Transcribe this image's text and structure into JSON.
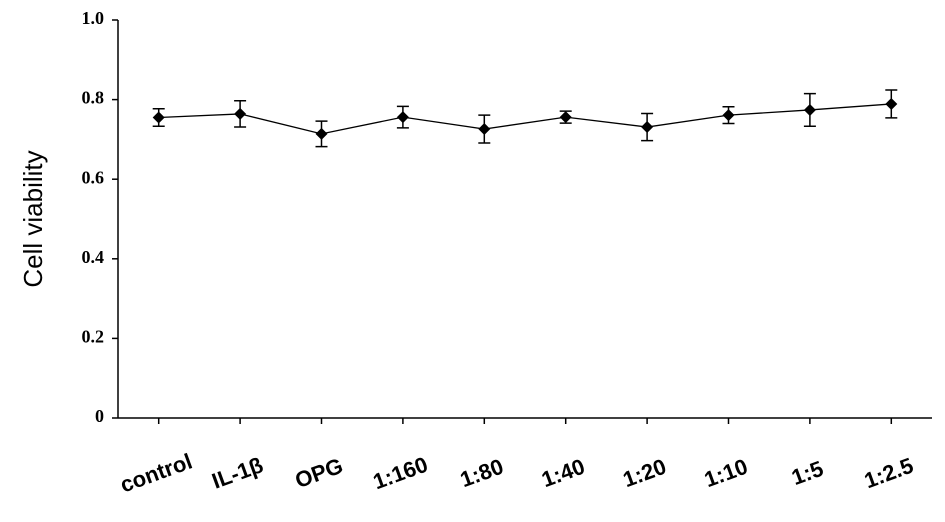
{
  "chart_data": {
    "type": "line",
    "ylabel": "Cell viability",
    "categories": [
      "control",
      "IL-1β",
      "OPG",
      "1:160",
      "1:80",
      "1:40",
      "1:20",
      "1:10",
      "1:5",
      "1:2.5"
    ],
    "values": [
      0.755,
      0.764,
      0.714,
      0.756,
      0.726,
      0.756,
      0.731,
      0.761,
      0.774,
      0.789
    ],
    "errors": [
      0.022,
      0.033,
      0.032,
      0.027,
      0.035,
      0.015,
      0.034,
      0.021,
      0.041,
      0.035
    ],
    "color": "#000000",
    "ylim": [
      0,
      1
    ],
    "yticks": [
      0,
      0.2,
      0.4,
      0.6,
      0.8,
      {
        "value": 1,
        "label": "1.0"
      }
    ],
    "grid": false
  }
}
